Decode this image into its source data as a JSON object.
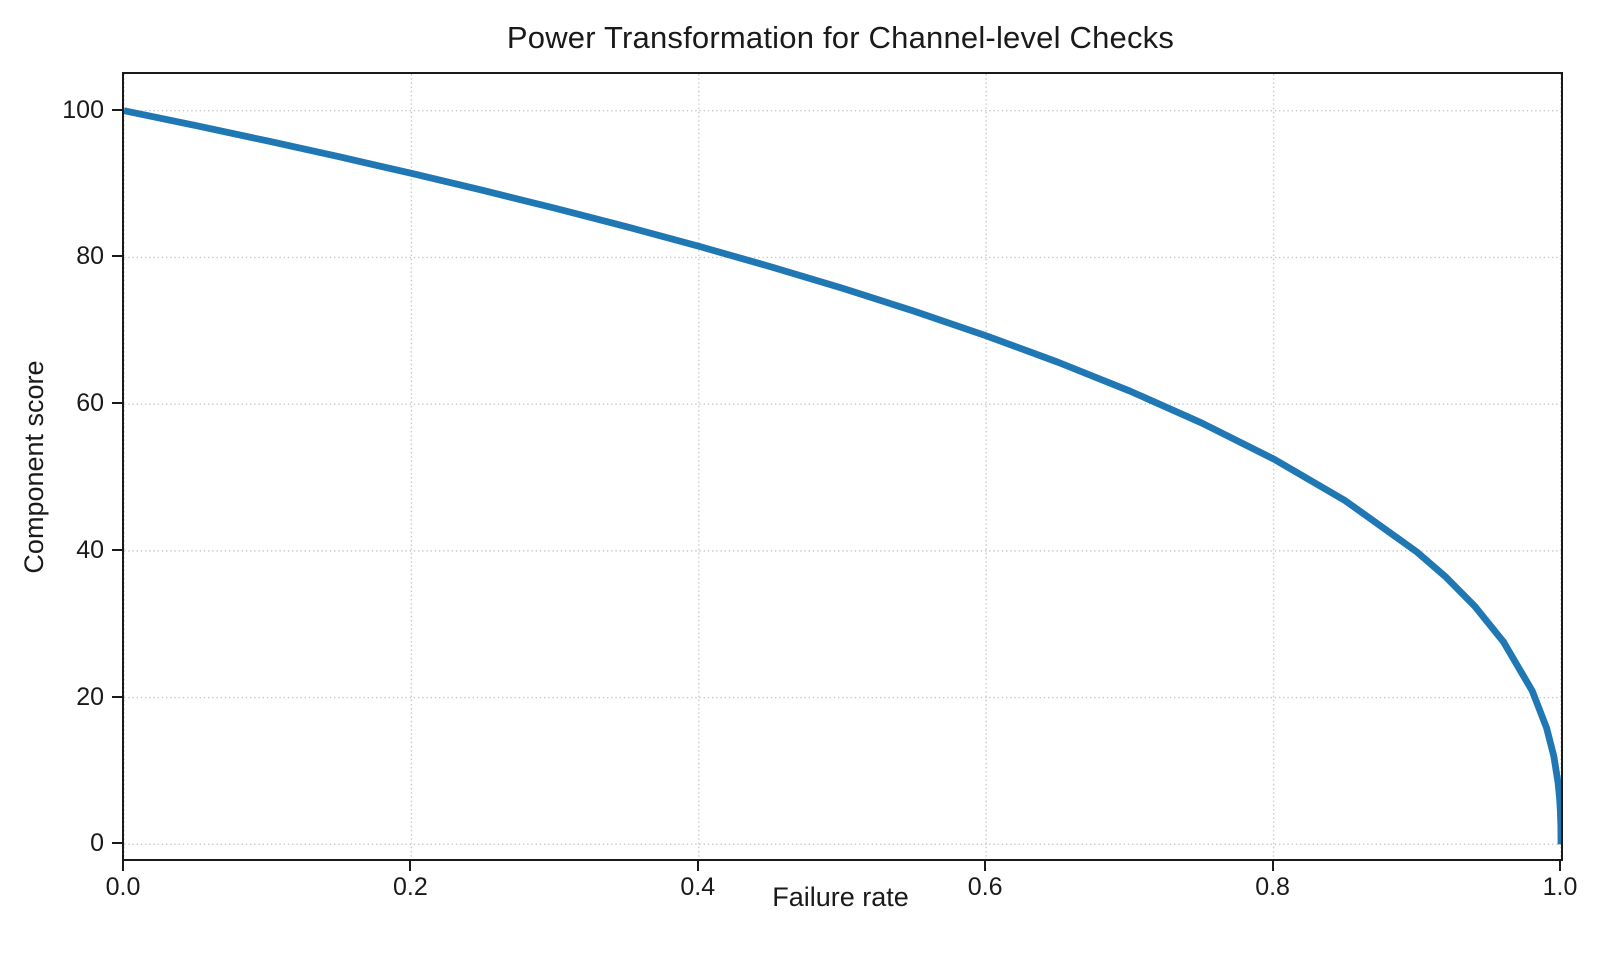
{
  "figure": {
    "background": "#ffffff"
  },
  "chart_data": {
    "type": "line",
    "title": "Power Transformation for Channel-level Checks",
    "xlabel": "Failure rate",
    "ylabel": "Component score",
    "xlim": [
      0.0,
      1.0
    ],
    "ylim": [
      -2,
      105
    ],
    "x_ticks": [
      0.0,
      0.2,
      0.4,
      0.6,
      0.8,
      1.0
    ],
    "x_tick_labels": [
      "0.0",
      "0.2",
      "0.4",
      "0.6",
      "0.8",
      "1.0"
    ],
    "y_ticks": [
      0,
      20,
      40,
      60,
      80,
      100
    ],
    "y_tick_labels": [
      "0",
      "20",
      "40",
      "60",
      "80",
      "100"
    ],
    "grid": "dotted",
    "legend": "none",
    "colors": {
      "line": "#1f77b4",
      "grid": "#c8c8c8",
      "axis": "#1a1a1a",
      "text": "#1a1a1a"
    },
    "series": [
      {
        "name": "component-score-curve",
        "color": "#1f77b4",
        "line_width": 6.8,
        "x": [
          0,
          0.05,
          0.1,
          0.15,
          0.2,
          0.25,
          0.3,
          0.35,
          0.4,
          0.45,
          0.5,
          0.55,
          0.6,
          0.65,
          0.7,
          0.75,
          0.8,
          0.85,
          0.9,
          0.92,
          0.94,
          0.96,
          0.98,
          0.99,
          0.995,
          0.998,
          0.999,
          0.9995,
          0.9999,
          1.0
        ],
        "y": [
          100,
          97.97,
          95.87,
          93.71,
          91.46,
          89.13,
          86.7,
          84.17,
          81.52,
          78.73,
          75.79,
          72.66,
          69.31,
          65.71,
          61.78,
          57.43,
          52.53,
          46.82,
          39.81,
          36.41,
          32.45,
          27.59,
          20.91,
          15.85,
          12.01,
          8.33,
          6.31,
          4.78,
          2.51,
          0
        ]
      }
    ]
  }
}
